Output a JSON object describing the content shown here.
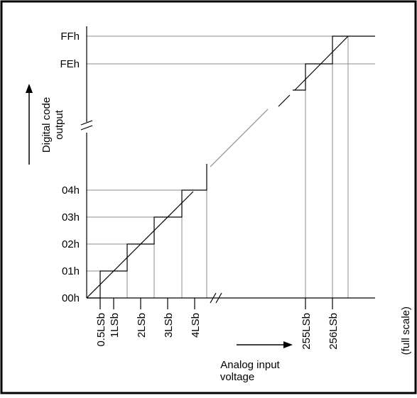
{
  "diagram": {
    "y_ticks": [
      "FFh",
      "FEh",
      "04h",
      "03h",
      "02h",
      "01h",
      "00h"
    ],
    "x_ticks": [
      "0.5LSb",
      "1LSb",
      "2LSb",
      "3LSb",
      "4LSb",
      "255LSb",
      "256LSb",
      "(full scale)"
    ],
    "y_axis_label": [
      "Digital code",
      "output"
    ],
    "x_axis_label": [
      "Analog input",
      "voltage"
    ],
    "colors": {
      "ink": "#000000",
      "grid": "#8c8c8c",
      "ideal_line": "#8c8c8c"
    }
  }
}
